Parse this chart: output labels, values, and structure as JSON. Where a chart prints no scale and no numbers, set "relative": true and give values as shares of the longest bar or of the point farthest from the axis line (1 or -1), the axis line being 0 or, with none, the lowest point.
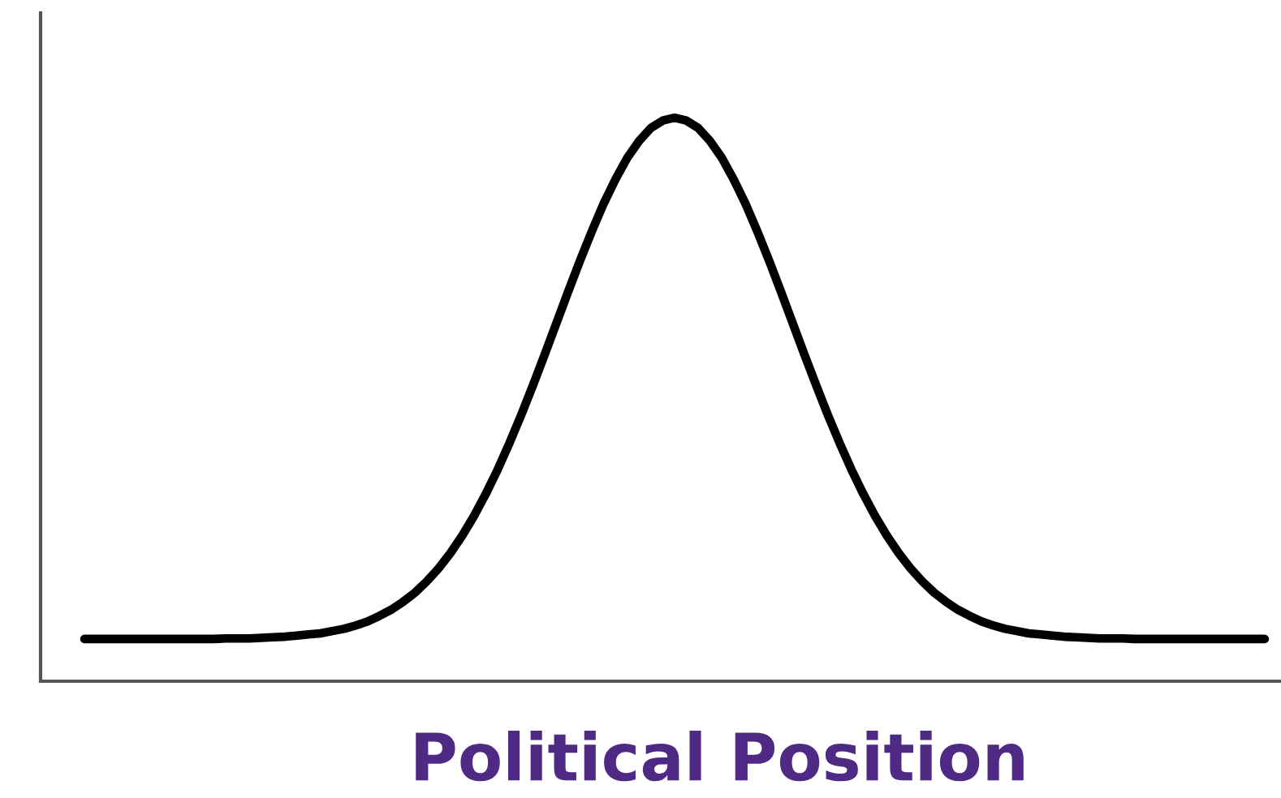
{
  "chart_data": {
    "type": "line",
    "xlabel": "Political Position",
    "relative": true,
    "categories": [
      null,
      null,
      null,
      null,
      null,
      null,
      null,
      null,
      null,
      null,
      null,
      null,
      null,
      null,
      null,
      null,
      null,
      null,
      null,
      null,
      null,
      null,
      null,
      null,
      null,
      null,
      null,
      null,
      null,
      null,
      null,
      null,
      null,
      null,
      null,
      null,
      null,
      null,
      null,
      null,
      null,
      null,
      null,
      null,
      null,
      null,
      null,
      null,
      null,
      null,
      null,
      null,
      null,
      null,
      null,
      null,
      null,
      null,
      null,
      null,
      null,
      null,
      null,
      null,
      null,
      null,
      null,
      null,
      null,
      null,
      null,
      null,
      null,
      null,
      null,
      null,
      null,
      null,
      null,
      null,
      null,
      null,
      null,
      null,
      null,
      null,
      null,
      null,
      null,
      null,
      null,
      null,
      null,
      null,
      null,
      null,
      null,
      null,
      null,
      null,
      null
    ],
    "series": [
      {
        "color": "#000000",
        "values": [
          0.075,
          0.075,
          0.075,
          0.075,
          0.075,
          0.075,
          0.075,
          0.075,
          0.075,
          0.075,
          0.075,
          0.075,
          0.076,
          0.076,
          0.076,
          0.077,
          0.078,
          0.079,
          0.081,
          0.083,
          0.085,
          0.089,
          0.093,
          0.099,
          0.106,
          0.116,
          0.127,
          0.141,
          0.157,
          0.177,
          0.2,
          0.227,
          0.258,
          0.293,
          0.332,
          0.375,
          0.422,
          0.472,
          0.525,
          0.58,
          0.636,
          0.692,
          0.747,
          0.799,
          0.848,
          0.891,
          0.929,
          0.959,
          0.982,
          0.995,
          1.0,
          0.995,
          0.982,
          0.959,
          0.929,
          0.891,
          0.848,
          0.799,
          0.747,
          0.692,
          0.636,
          0.58,
          0.525,
          0.472,
          0.422,
          0.375,
          0.332,
          0.293,
          0.258,
          0.227,
          0.2,
          0.177,
          0.157,
          0.141,
          0.127,
          0.116,
          0.106,
          0.099,
          0.093,
          0.089,
          0.085,
          0.083,
          0.081,
          0.079,
          0.078,
          0.077,
          0.076,
          0.076,
          0.076,
          0.075,
          0.075,
          0.075,
          0.075,
          0.075,
          0.075,
          0.075,
          0.075,
          0.075,
          0.075,
          0.075,
          0.075
        ]
      }
    ]
  }
}
